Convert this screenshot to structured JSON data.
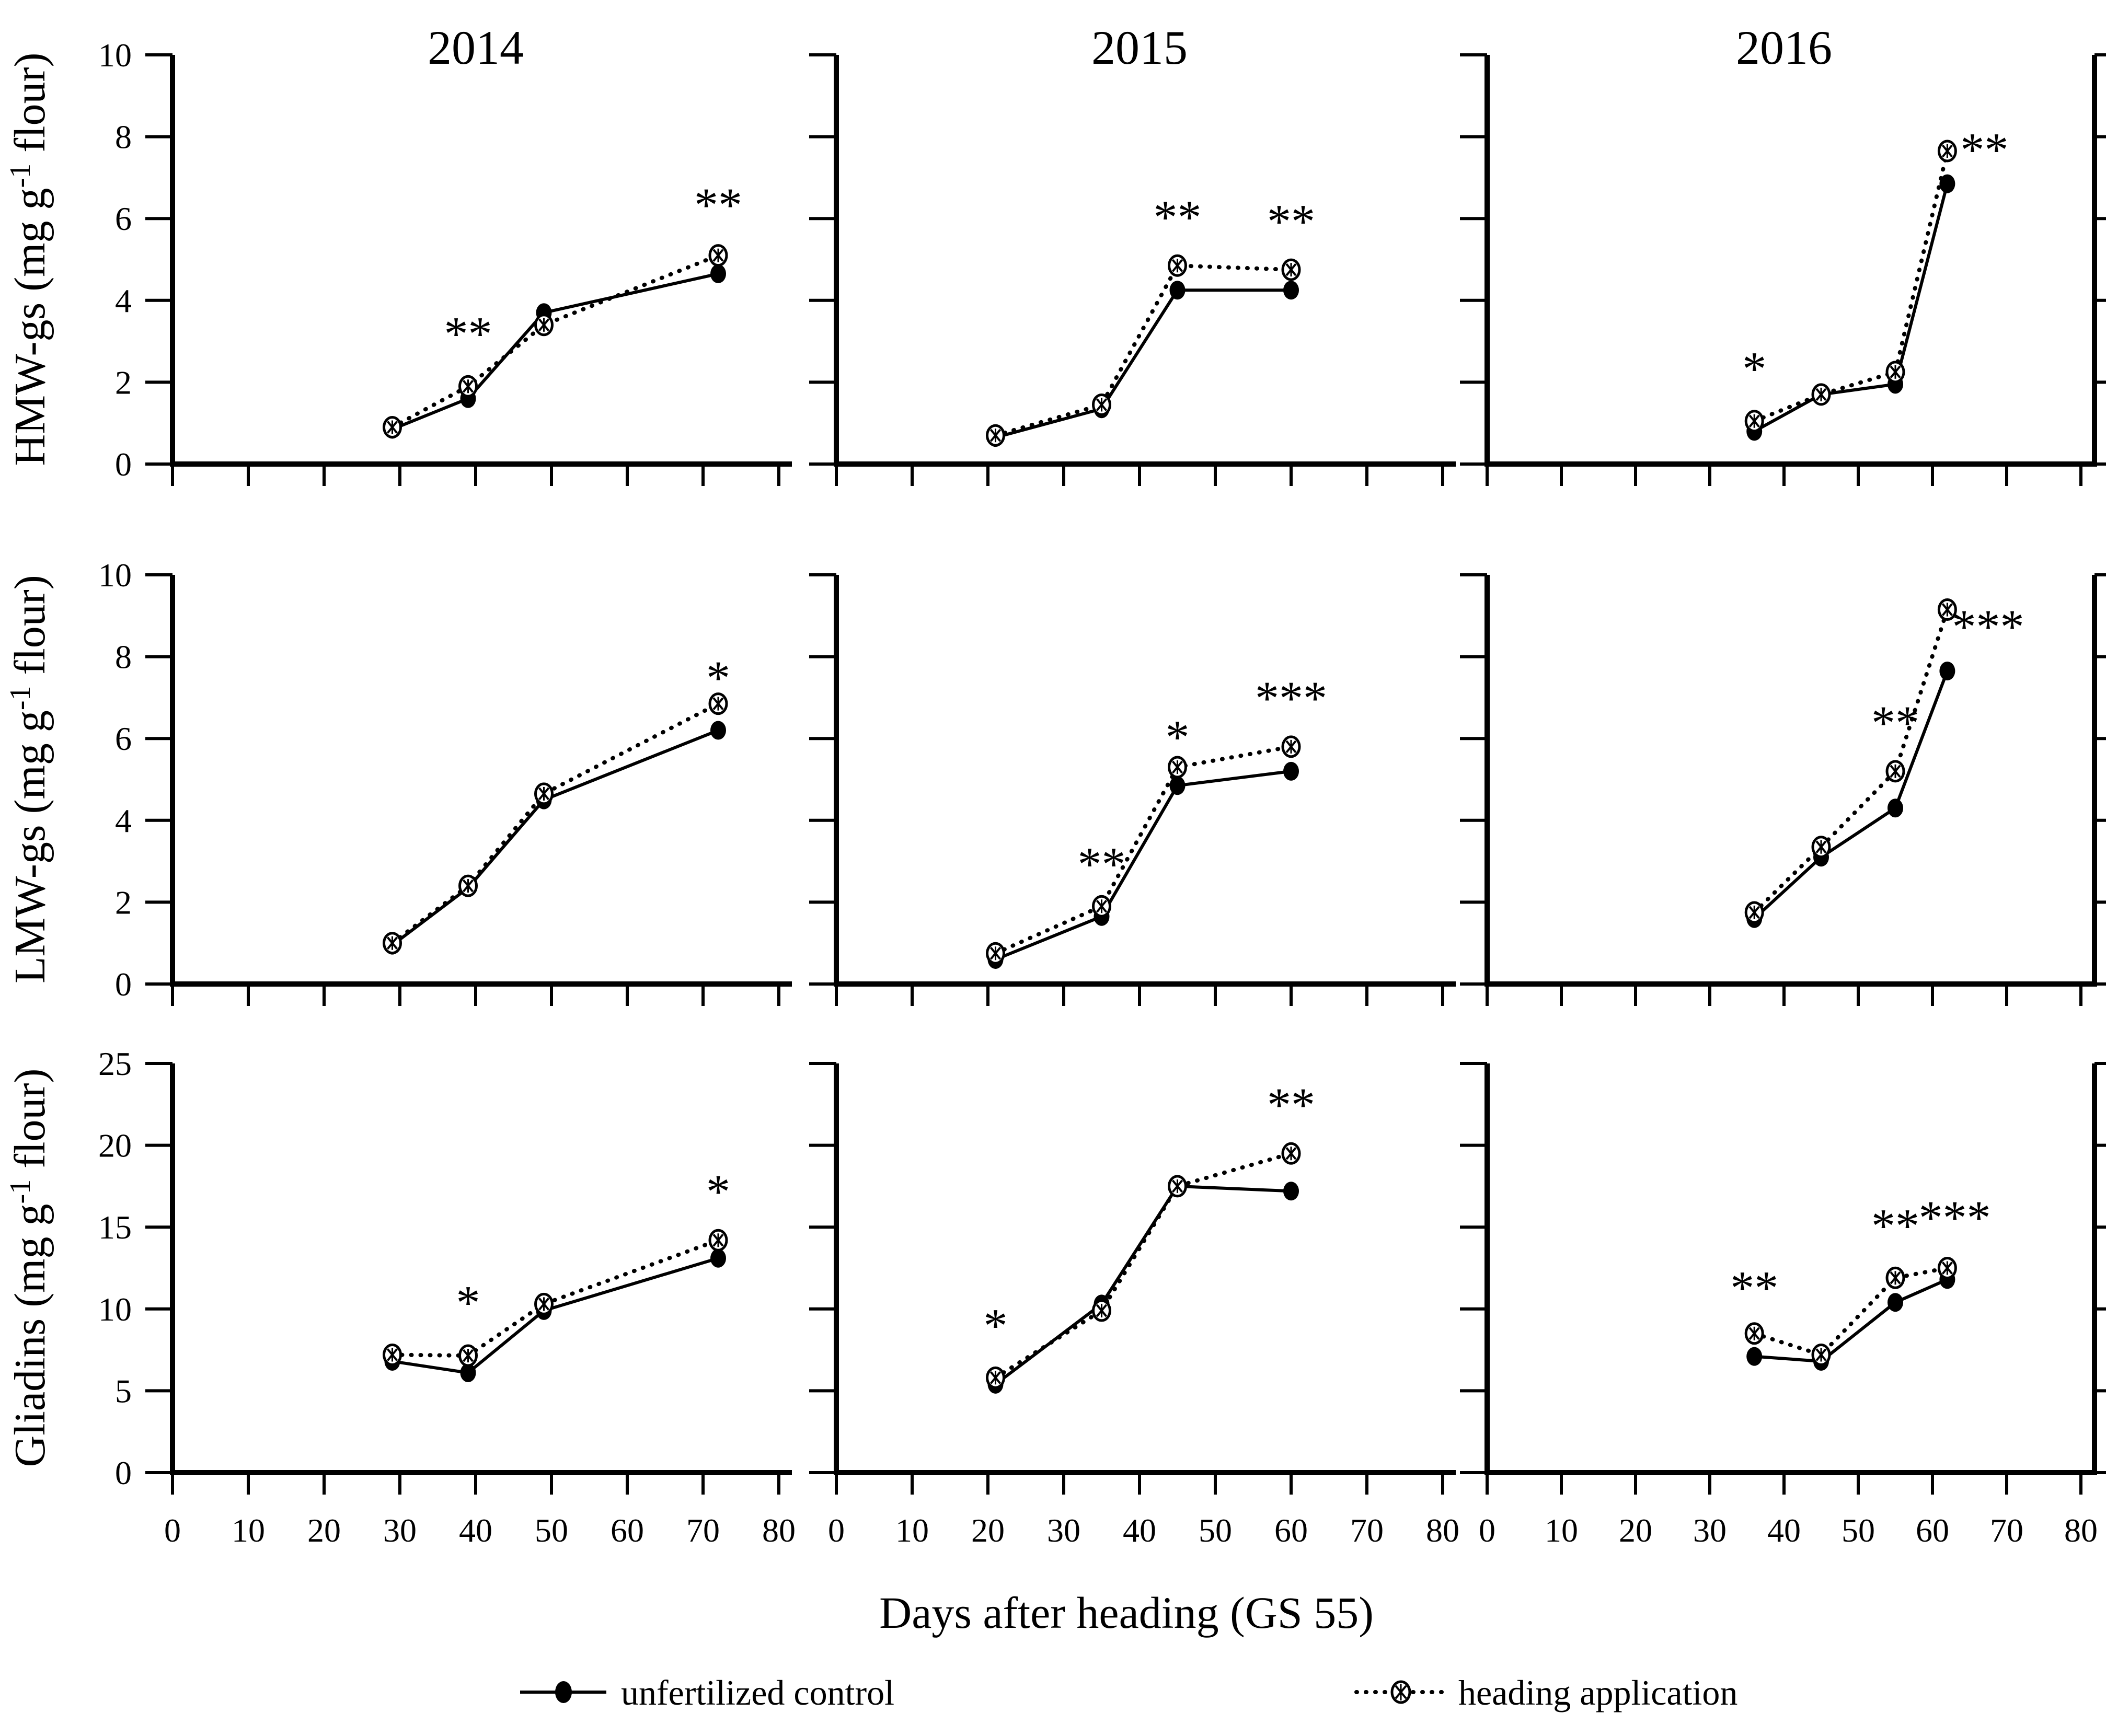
{
  "figure": {
    "columns": [
      "2014",
      "2015",
      "2016"
    ],
    "rows": [
      {
        "key": "hmw-gs",
        "label_pre": "HMW-gs  (mg g",
        "label_sup": "-1",
        "label_post": " flour)",
        "ylim": [
          0,
          10
        ],
        "yticks": [
          0,
          2,
          4,
          6,
          8,
          10
        ]
      },
      {
        "key": "lmw-gs",
        "label_pre": "LMW-gs (mg g",
        "label_sup": "-1",
        "label_post": " flour)",
        "ylim": [
          0,
          10
        ],
        "yticks": [
          0,
          2,
          4,
          6,
          8,
          10
        ]
      },
      {
        "key": "gliadins",
        "label_pre": "Gliadins  (mg g",
        "label_sup": "-1",
        "label_post": " flour)",
        "ylim": [
          0,
          25
        ],
        "yticks": [
          0,
          5,
          10,
          15,
          20,
          25
        ]
      }
    ],
    "xlabel": "Days after heading (GS 55)",
    "xlim": [
      0,
      80
    ],
    "xticks": [
      0,
      10,
      20,
      30,
      40,
      50,
      60,
      70,
      80
    ],
    "legend": [
      {
        "label": "unfertilized control",
        "marker": "filled-circle",
        "line": "solid"
      },
      {
        "label": "heading application",
        "marker": "crosshatch-circle",
        "line": "dotted"
      }
    ],
    "colors": {
      "ink": "#000000",
      "background": "#ffffff"
    }
  },
  "chart_data": [
    {
      "type": "line",
      "year": "2014",
      "protein": "HMW-gs",
      "ylabel": "HMW-gs (mg g-1 flour)",
      "x": [
        29,
        39,
        49,
        72
      ],
      "ylim": [
        0,
        10
      ],
      "series": [
        {
          "name": "unfertilized control",
          "values": [
            0.85,
            1.6,
            3.7,
            4.65
          ]
        },
        {
          "name": "heading application",
          "values": [
            0.9,
            1.9,
            3.4,
            5.1
          ]
        }
      ],
      "significance": [
        {
          "x": 39,
          "y": 3.35,
          "text": "**"
        },
        {
          "x": 72,
          "y": 6.5,
          "text": "**"
        }
      ]
    },
    {
      "type": "line",
      "year": "2015",
      "protein": "HMW-gs",
      "ylabel": "HMW-gs (mg g-1 flour)",
      "x": [
        21,
        35,
        45,
        60
      ],
      "ylim": [
        0,
        10
      ],
      "series": [
        {
          "name": "unfertilized control",
          "values": [
            0.65,
            1.35,
            4.25,
            4.25
          ]
        },
        {
          "name": "heading application",
          "values": [
            0.7,
            1.45,
            4.85,
            4.75
          ]
        }
      ],
      "significance": [
        {
          "x": 45,
          "y": 6.2,
          "text": "**"
        },
        {
          "x": 60,
          "y": 6.1,
          "text": "**"
        }
      ]
    },
    {
      "type": "line",
      "year": "2016",
      "protein": "HMW-gs",
      "ylabel": "HMW-gs (mg g-1 flour)",
      "x": [
        36,
        45,
        55,
        62
      ],
      "ylim": [
        0,
        10
      ],
      "series": [
        {
          "name": "unfertilized control",
          "values": [
            0.8,
            1.7,
            1.95,
            6.85
          ]
        },
        {
          "name": "heading application",
          "values": [
            1.05,
            1.7,
            2.25,
            7.65
          ]
        }
      ],
      "significance": [
        {
          "x": 36,
          "y": 2.5,
          "text": "*"
        },
        {
          "x": 67,
          "y": 7.85,
          "text": "**"
        }
      ]
    },
    {
      "type": "line",
      "year": "2014",
      "protein": "LMW-gs",
      "ylabel": "LMW-gs (mg g-1 flour)",
      "x": [
        29,
        39,
        49,
        72
      ],
      "ylim": [
        0,
        10
      ],
      "series": [
        {
          "name": "unfertilized control",
          "values": [
            0.95,
            2.35,
            4.5,
            6.2
          ]
        },
        {
          "name": "heading application",
          "values": [
            1.0,
            2.4,
            4.65,
            6.85
          ]
        }
      ],
      "significance": [
        {
          "x": 72,
          "y": 7.65,
          "text": "*"
        }
      ]
    },
    {
      "type": "line",
      "year": "2015",
      "protein": "LMW-gs",
      "ylabel": "LMW-gs (mg g-1 flour)",
      "x": [
        21,
        35,
        45,
        60
      ],
      "ylim": [
        0,
        10
      ],
      "series": [
        {
          "name": "unfertilized control",
          "values": [
            0.6,
            1.65,
            4.85,
            5.2
          ]
        },
        {
          "name": "heading application",
          "values": [
            0.75,
            1.9,
            5.3,
            5.8
          ]
        }
      ],
      "significance": [
        {
          "x": 35,
          "y": 3.1,
          "text": "**"
        },
        {
          "x": 45,
          "y": 6.2,
          "text": "*"
        },
        {
          "x": 60,
          "y": 7.15,
          "text": "***"
        }
      ]
    },
    {
      "type": "line",
      "year": "2016",
      "protein": "LMW-gs",
      "ylabel": "LMW-gs (mg g-1 flour)",
      "x": [
        36,
        45,
        55,
        62
      ],
      "ylim": [
        0,
        10
      ],
      "series": [
        {
          "name": "unfertilized control",
          "values": [
            1.6,
            3.1,
            4.3,
            7.65
          ]
        },
        {
          "name": "heading application",
          "values": [
            1.75,
            3.35,
            5.2,
            9.15
          ]
        }
      ],
      "significance": [
        {
          "x": 55,
          "y": 6.55,
          "text": "**"
        },
        {
          "x": 67.5,
          "y": 8.9,
          "text": "***"
        }
      ]
    },
    {
      "type": "line",
      "year": "2014",
      "protein": "Gliadins",
      "ylabel": "Gliadins (mg g-1 flour)",
      "x": [
        29,
        39,
        49,
        72
      ],
      "ylim": [
        0,
        25
      ],
      "series": [
        {
          "name": "unfertilized control",
          "values": [
            6.8,
            6.1,
            9.9,
            13.1
          ]
        },
        {
          "name": "heading application",
          "values": [
            7.2,
            7.15,
            10.3,
            14.2
          ]
        }
      ],
      "significance": [
        {
          "x": 39,
          "y": 10.8,
          "text": "*"
        },
        {
          "x": 72,
          "y": 17.6,
          "text": "*"
        }
      ]
    },
    {
      "type": "line",
      "year": "2015",
      "protein": "Gliadins",
      "ylabel": "Gliadins (mg g-1 flour)",
      "x": [
        21,
        35,
        45,
        60
      ],
      "ylim": [
        0,
        25
      ],
      "series": [
        {
          "name": "unfertilized control",
          "values": [
            5.4,
            10.3,
            17.5,
            17.2
          ]
        },
        {
          "name": "heading application",
          "values": [
            5.8,
            9.9,
            17.5,
            19.5
          ]
        }
      ],
      "significance": [
        {
          "x": 21,
          "y": 9.4,
          "text": "*"
        },
        {
          "x": 60,
          "y": 22.9,
          "text": "**"
        }
      ]
    },
    {
      "type": "line",
      "year": "2016",
      "protein": "Gliadins",
      "ylabel": "Gliadins (mg g-1 flour)",
      "x": [
        36,
        45,
        55,
        62
      ],
      "ylim": [
        0,
        25
      ],
      "series": [
        {
          "name": "unfertilized control",
          "values": [
            7.1,
            6.8,
            10.4,
            11.8
          ]
        },
        {
          "name": "heading application",
          "values": [
            8.5,
            7.2,
            11.9,
            12.5
          ]
        }
      ],
      "significance": [
        {
          "x": 36,
          "y": 11.7,
          "text": "**"
        },
        {
          "x": 55,
          "y": 15.5,
          "text": "**"
        },
        {
          "x": 63,
          "y": 16.0,
          "text": "***"
        }
      ]
    }
  ]
}
